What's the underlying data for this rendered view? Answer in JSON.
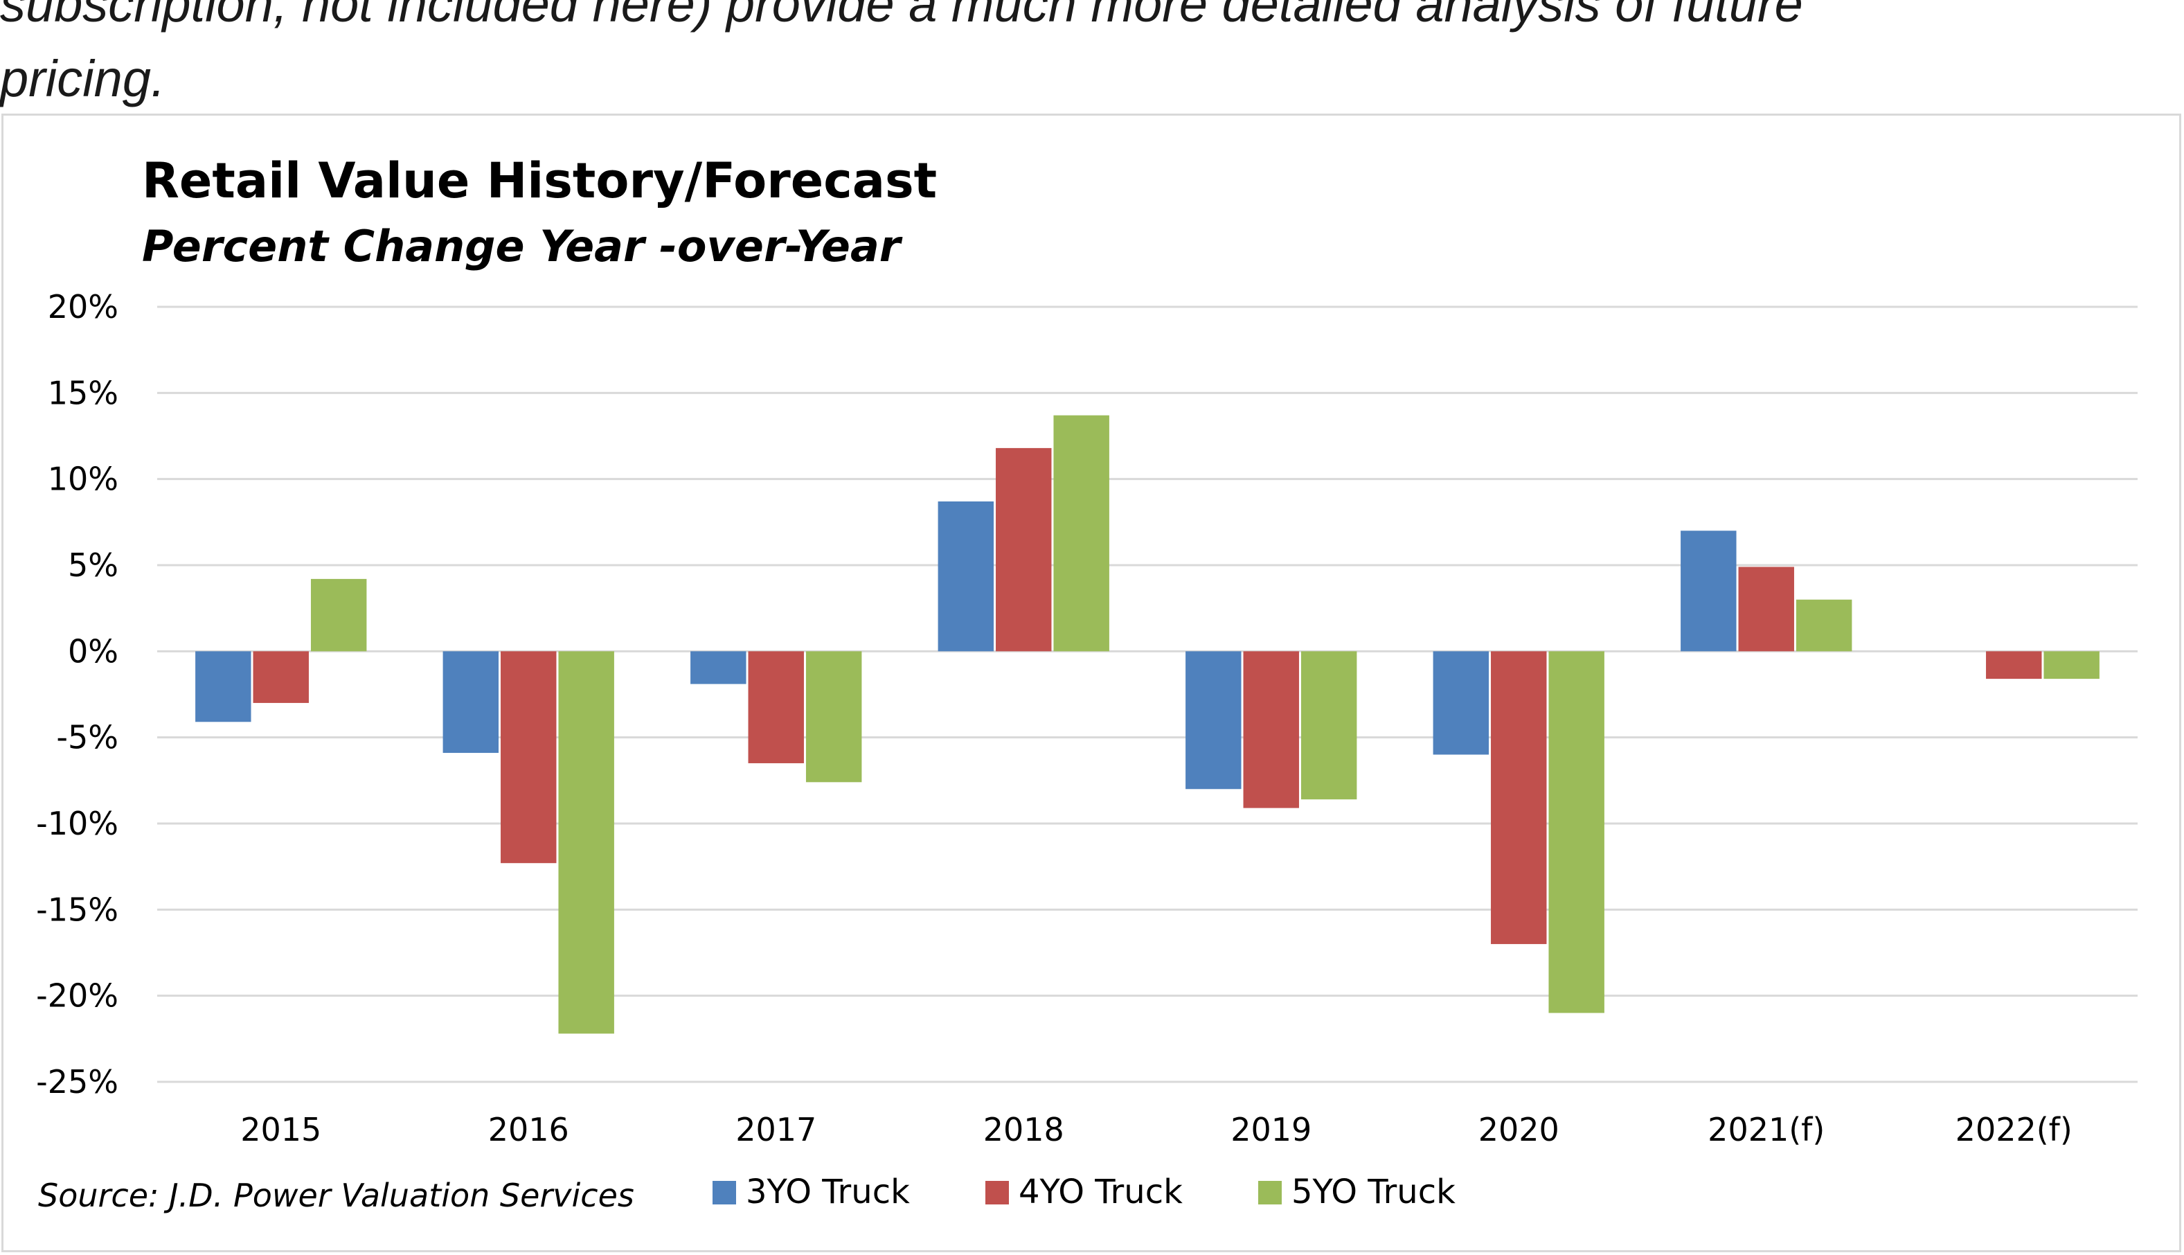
{
  "intro_text": {
    "line1": "subscription, not included here) provide a much more detailed analysis of future",
    "line2": "pricing."
  },
  "chart_data": {
    "type": "bar",
    "title": "Retail Value History/Forecast",
    "subtitle": "Percent Change Year -over-Year",
    "categories": [
      "2015",
      "2016",
      "2017",
      "2018",
      "2019",
      "2020",
      "2021(f)",
      "2022(f)"
    ],
    "series": [
      {
        "name": "3YO Truck",
        "color": "#4f81bd",
        "values": [
          -4.1,
          -5.9,
          -1.9,
          8.7,
          -8.0,
          -6.0,
          7.0,
          0
        ]
      },
      {
        "name": "4YO Truck",
        "color": "#c0504d",
        "values": [
          -3.0,
          -12.3,
          -6.5,
          11.8,
          -9.1,
          -17.0,
          4.9,
          -1.6
        ]
      },
      {
        "name": "5YO Truck",
        "color": "#9bbb59",
        "values": [
          4.2,
          -22.2,
          -7.6,
          13.7,
          -8.6,
          -21.0,
          3.0,
          -1.6
        ]
      }
    ],
    "y_ticks": [
      "20%",
      "15%",
      "10%",
      "5%",
      "0%",
      "-5%",
      "-10%",
      "-15%",
      "-20%",
      "-25%"
    ],
    "ylim": [
      -25,
      20
    ],
    "grid": true,
    "legend_position": "bottom",
    "source": "Source: J.D. Power Valuation Services"
  }
}
